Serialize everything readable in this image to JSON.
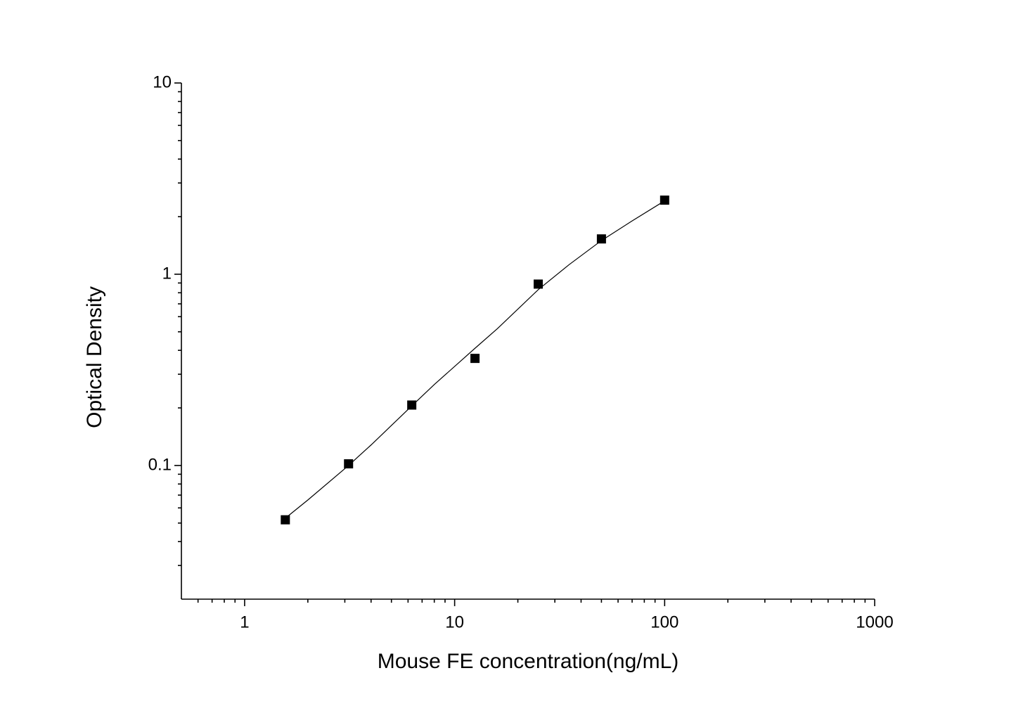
{
  "chart_data": {
    "type": "scatter",
    "x_label": "Mouse FE concentration(ng/mL)",
    "y_label": "Optical Density",
    "x": [
      1.5625,
      3.125,
      6.25,
      12.5,
      25,
      50,
      100
    ],
    "values": [
      0.052,
      0.102,
      0.207,
      0.363,
      0.888,
      1.53,
      2.44
    ],
    "color": "#000000",
    "curve": {
      "type": "line",
      "color": "#000000",
      "x": [
        1.5625,
        2,
        3.125,
        4,
        6.25,
        8,
        12.5,
        16,
        25,
        35,
        50,
        70,
        100
      ],
      "values": [
        0.053,
        0.066,
        0.1,
        0.128,
        0.205,
        0.265,
        0.41,
        0.52,
        0.83,
        1.12,
        1.5,
        1.9,
        2.42
      ]
    },
    "xscale": "log",
    "yscale": "log",
    "xlim": [
      0.5,
      1000
    ],
    "ylim": [
      0.02,
      10
    ],
    "xticks": [
      1,
      10,
      100,
      1000
    ],
    "yticks": [
      0.1,
      1,
      10
    ],
    "xminorticks": [
      0.6,
      0.7,
      0.8,
      0.9,
      2,
      3,
      4,
      5,
      6,
      7,
      8,
      9,
      20,
      30,
      40,
      50,
      60,
      70,
      80,
      90,
      200,
      300,
      400,
      500,
      600,
      700,
      800,
      900
    ],
    "yminorticks": [
      0.03,
      0.04,
      0.05,
      0.06,
      0.07,
      0.08,
      0.09,
      0.2,
      0.3,
      0.4,
      0.5,
      0.6,
      0.7,
      0.8,
      0.9,
      2,
      3,
      4,
      5,
      6,
      7,
      8,
      9
    ],
    "grid": false
  }
}
